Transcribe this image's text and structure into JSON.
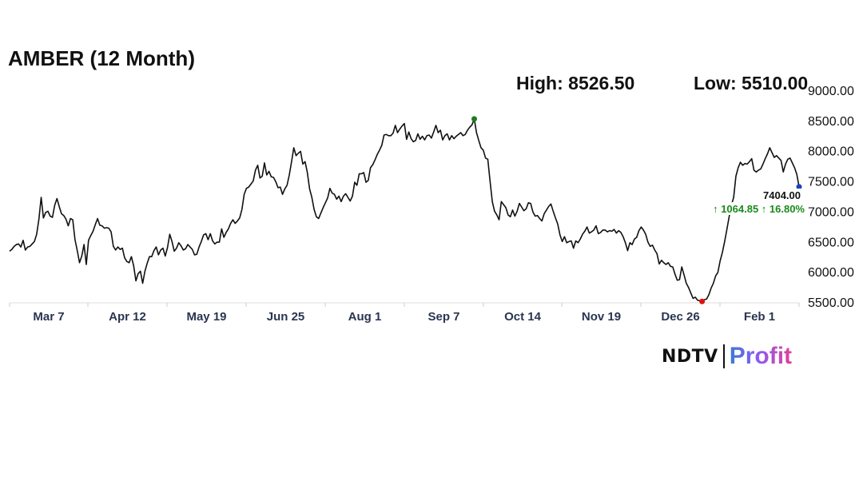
{
  "header": {
    "title": "AMBER (12 Month)",
    "high_label": "High: 8526.50",
    "low_label": "Low: 5510.00"
  },
  "logo": {
    "brand": "NDTV",
    "product": "Profit"
  },
  "colors": {
    "line": "#111111",
    "high_marker": "#1a7f1a",
    "low_marker": "#e01010",
    "last_marker": "#1a3fbf",
    "change_positive": "#1a8a1a"
  },
  "chart_data": {
    "type": "line",
    "title": "AMBER (12 Month)",
    "xlabel": "",
    "ylabel": "",
    "ylim": [
      5500,
      9000
    ],
    "y_ticks": [
      "9000.00",
      "8500.00",
      "8000.00",
      "7500.00",
      "7000.00",
      "6500.00",
      "6000.00",
      "5500.00"
    ],
    "x_ticks": [
      "Mar 7",
      "Apr 12",
      "May 19",
      "Jun 25",
      "Aug 1",
      "Sep 7",
      "Oct 14",
      "Nov 19",
      "Dec 26",
      "Feb 1"
    ],
    "grid": false,
    "high": 8526.5,
    "low": 5510.0,
    "last_value": "7404.00",
    "change_text": "↑ 1064.85 ↑ 16.80%",
    "series": [
      {
        "values": [
          6340,
          6370,
          6420,
          6450,
          6460,
          6410,
          6520,
          6360,
          6410,
          6420,
          6460,
          6500,
          6620,
          6870,
          7230,
          6890,
          6980,
          7000,
          6920,
          6900,
          7100,
          7210,
          7080,
          6960,
          6930,
          6870,
          6760,
          6880,
          6860,
          6530,
          6350,
          6150,
          6260,
          6450,
          6120,
          6520,
          6600,
          6670,
          6780,
          6880,
          6770,
          6760,
          6720,
          6730,
          6720,
          6660,
          6420,
          6360,
          6410,
          6370,
          6390,
          6230,
          6170,
          6150,
          6250,
          6100,
          5850,
          5970,
          6010,
          5810,
          6010,
          6140,
          6250,
          6250,
          6350,
          6410,
          6280,
          6360,
          6390,
          6260,
          6400,
          6620,
          6500,
          6340,
          6390,
          6480,
          6430,
          6360,
          6380,
          6450,
          6410,
          6370,
          6280,
          6290,
          6410,
          6500,
          6610,
          6630,
          6530,
          6630,
          6510,
          6460,
          6490,
          6490,
          6710,
          6570,
          6650,
          6710,
          6800,
          6860,
          6800,
          6840,
          6890,
          7030,
          7280,
          7380,
          7400,
          7450,
          7500,
          7680,
          7760,
          7550,
          7580,
          7800,
          7600,
          7660,
          7570,
          7560,
          7490,
          7390,
          7400,
          7280,
          7370,
          7430,
          7600,
          7820,
          8050,
          7920,
          7960,
          7990,
          7780,
          7820,
          7640,
          7370,
          7230,
          7030,
          6910,
          6880,
          6970,
          7060,
          7140,
          7220,
          7380,
          7300,
          7280,
          7200,
          7250,
          7160,
          7250,
          7290,
          7230,
          7170,
          7250,
          7480,
          7430,
          7620,
          7620,
          7640,
          7480,
          7510,
          7720,
          7770,
          7850,
          7940,
          8010,
          8090,
          8260,
          8270,
          8250,
          8250,
          8290,
          8420,
          8300,
          8360,
          8410,
          8450,
          8190,
          8310,
          8200,
          8150,
          8170,
          8280,
          8190,
          8240,
          8180,
          8250,
          8260,
          8210,
          8310,
          8420,
          8300,
          8340,
          8180,
          8250,
          8280,
          8180,
          8250,
          8200,
          8240,
          8270,
          8300,
          8250,
          8270,
          8340,
          8390,
          8430,
          8526,
          8300,
          8170,
          8050,
          8010,
          7880,
          7860,
          7500,
          7160,
          7000,
          6940,
          6860,
          7160,
          7110,
          7060,
          6940,
          6910,
          7020,
          6920,
          7000,
          7130,
          7070,
          7010,
          7040,
          7140,
          7130,
          6990,
          6920,
          6930,
          6880,
          6840,
          6960,
          7020,
          7080,
          7120,
          7000,
          6890,
          6790,
          6610,
          6500,
          6580,
          6480,
          6500,
          6510,
          6390,
          6510,
          6480,
          6540,
          6620,
          6670,
          6740,
          6640,
          6660,
          6690,
          6760,
          6630,
          6650,
          6690,
          6690,
          6660,
          6680,
          6670,
          6700,
          6640,
          6680,
          6650,
          6580,
          6480,
          6350,
          6480,
          6450,
          6540,
          6570,
          6680,
          6740,
          6690,
          6620,
          6490,
          6420,
          6440,
          6360,
          6300,
          6130,
          6190,
          6150,
          6120,
          6150,
          6090,
          6080,
          5960,
          5860,
          5870,
          6080,
          5950,
          5810,
          5740,
          5650,
          5560,
          5580,
          5530,
          5520,
          5510,
          5540,
          5550,
          5620,
          5730,
          5810,
          5930,
          5990,
          6180,
          6320,
          6500,
          6700,
          6910,
          7100,
          7230,
          7580,
          7720,
          7810,
          7760,
          7790,
          7780,
          7820,
          7870,
          7680,
          7650,
          7680,
          7700,
          7780,
          7870,
          7950,
          8050,
          7970,
          7890,
          7920,
          7880,
          7840,
          7650,
          7780,
          7860,
          7880,
          7800,
          7720,
          7610,
          7404
        ]
      }
    ]
  }
}
